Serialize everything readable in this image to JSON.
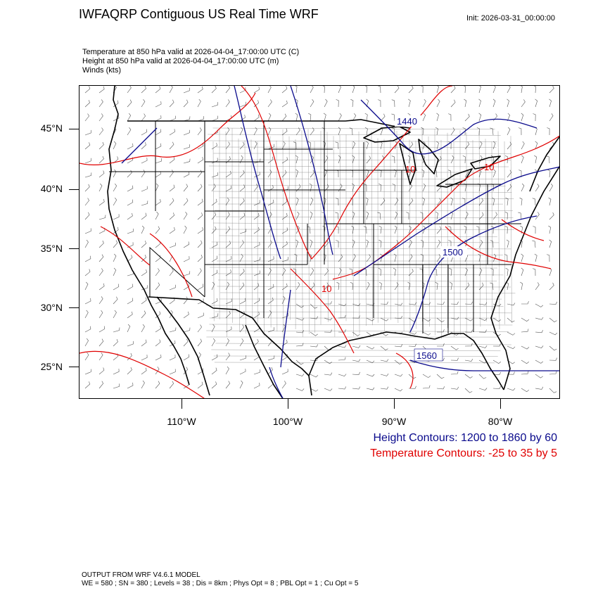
{
  "header": {
    "title": "IWFAQRP Contiguous US Real Time WRF",
    "init": "Init: 2026-03-31_00:00:00",
    "subtitle_lines": [
      "Temperature at 850 hPa valid at 2026-04-04_17:00:00 UTC   (C)",
      "Height at 850 hPa valid at 2026-04-04_17:00:00 UTC   (m)",
      "Winds   (kts)"
    ]
  },
  "map": {
    "lat_labels": [
      "45°N",
      "40°N",
      "35°N",
      "30°N",
      "25°N"
    ],
    "lon_labels": [
      "110°W",
      "100°W",
      "90°W",
      "80°W"
    ],
    "height_contour_labels": [
      "1440",
      "1500",
      "1560"
    ],
    "temperature_contour_labels": [
      "10",
      "10",
      "10"
    ],
    "colors": {
      "height": "#0a0a8c",
      "temperature": "#e00000",
      "borders": "#000000",
      "wind_barbs": "#555555"
    }
  },
  "legend": {
    "height": "Height Contours: 1200 to 1860 by 60",
    "temperature": "Temperature Contours: -25 to 35 by 5"
  },
  "footer": {
    "line1": "OUTPUT FROM WRF V4.6.1 MODEL",
    "line2": "WE = 580 ; SN = 380 ; Levels = 38 ; Dis = 8km ; Phys Opt = 8 ; PBL Opt = 1 ; Cu Opt = 5"
  }
}
